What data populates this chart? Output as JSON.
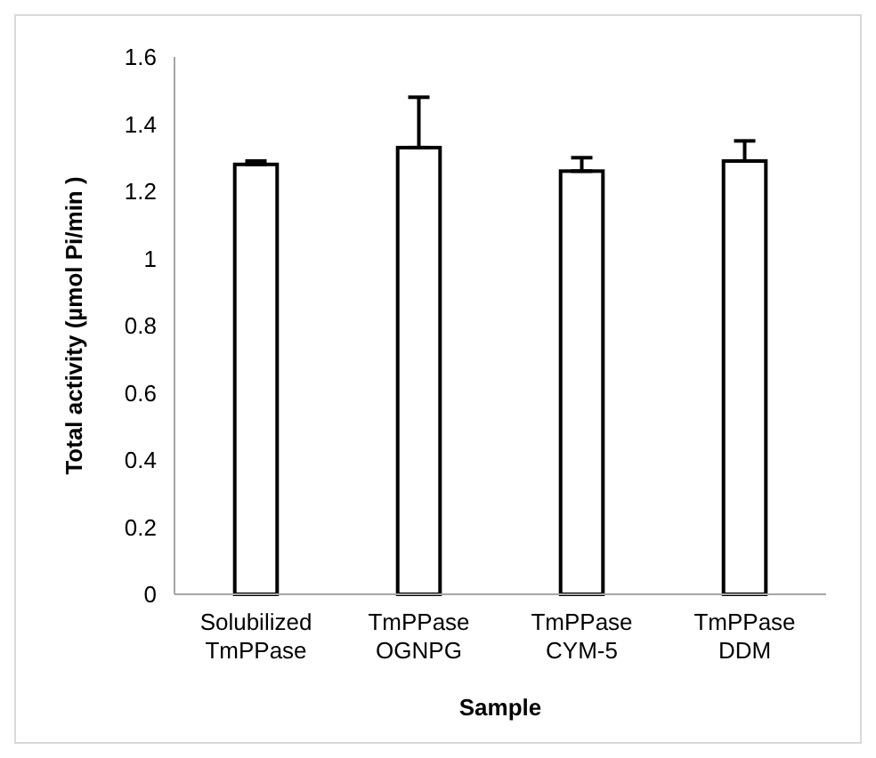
{
  "chart_data": {
    "type": "bar",
    "xlabel": "Sample",
    "ylabel": "Total activity (µmol Pi/min )",
    "categories": [
      "Solubilized TmPPase",
      "TmPPase OGNPG",
      "TmPPase CYM-5",
      "TmPPase DDM"
    ],
    "values": [
      1.28,
      1.33,
      1.26,
      1.29
    ],
    "errors": [
      [
        1.28,
        1.29
      ],
      [
        1.33,
        1.48
      ],
      [
        1.26,
        1.3
      ],
      [
        1.29,
        1.35
      ]
    ],
    "color": "#ffffff",
    "ylim": [
      0,
      1.6
    ],
    "yticks": [
      0,
      0.2,
      0.4,
      0.6,
      0.8,
      1,
      1.2,
      1.4,
      1.6
    ],
    "grid": false
  }
}
